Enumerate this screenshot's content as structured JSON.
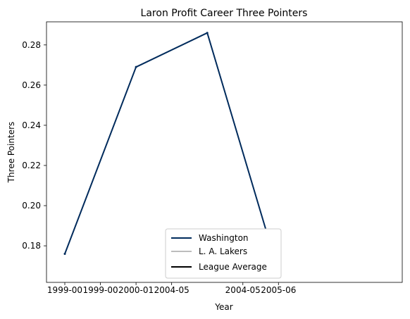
{
  "chart_data": {
    "type": "line",
    "title": "Laron Profit Career Three Pointers",
    "xlabel": "Year",
    "ylabel": "Three Pointers",
    "x_ticks": [
      "1999-00",
      "1999-00",
      "2000-01",
      "2004-05",
      "2004-05",
      "2004-05",
      "2005-06"
    ],
    "yticks": [
      "0.18",
      "0.20",
      "0.22",
      "0.24",
      "0.26",
      "0.28"
    ],
    "ylim": [
      0.1618,
      0.2915
    ],
    "grid": false,
    "legend_position": "lower-center",
    "series": [
      {
        "name": "Washington",
        "color": "#002B5C",
        "x_index": [
          0,
          2,
          4,
          6
        ],
        "values": [
          0.176,
          0.269,
          0.286,
          0.167
        ]
      },
      {
        "name": "L. A. Lakers",
        "color": "#BDBDBD",
        "x_index": [],
        "values": []
      },
      {
        "name": "League Average",
        "color": "#000000",
        "x_index": [],
        "values": []
      }
    ]
  }
}
